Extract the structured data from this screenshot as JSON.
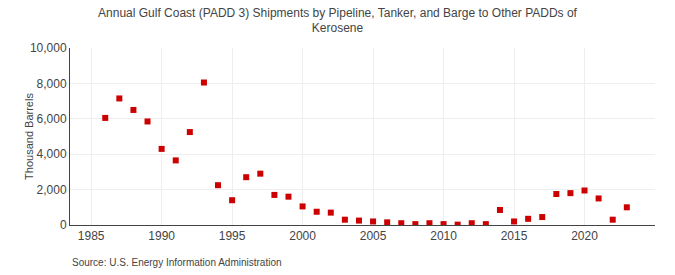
{
  "chart_data": {
    "type": "scatter",
    "title": "Annual Gulf Coast (PADD 3) Shipments by Pipeline, Tanker, and Barge to Other PADDs of\nKerosene",
    "ylabel": "Thousand Barrels",
    "annotations": [
      "Source: U.S. Energy Information Administration"
    ],
    "x": [
      1986,
      1987,
      1988,
      1989,
      1990,
      1991,
      1992,
      1993,
      1994,
      1995,
      1996,
      1997,
      1998,
      1999,
      2000,
      2001,
      2002,
      2003,
      2004,
      2005,
      2006,
      2007,
      2008,
      2009,
      2010,
      2011,
      2012,
      2013,
      2014,
      2015,
      2016,
      2017,
      2018,
      2019,
      2020,
      2021,
      2022,
      2023
    ],
    "values": [
      6050,
      7150,
      6500,
      5850,
      4300,
      3650,
      5250,
      8050,
      2250,
      1400,
      2700,
      2900,
      1700,
      1600,
      1050,
      750,
      700,
      300,
      250,
      200,
      150,
      100,
      50,
      100,
      50,
      20,
      100,
      50,
      850,
      200,
      350,
      450,
      1750,
      1800,
      1950,
      1500,
      300,
      1000
    ],
    "color": "#cc0000",
    "marker": "square",
    "xlim": [
      1983.5,
      2025
    ],
    "ylim": [
      0,
      10000
    ],
    "xticks": [
      1985,
      1990,
      1995,
      2000,
      2005,
      2010,
      2015,
      2020
    ],
    "yticks": [
      0,
      {
        "value": 2000,
        "label": "2,000"
      },
      {
        "value": 4000,
        "label": "4,000"
      },
      {
        "value": 6000,
        "label": "6,000"
      },
      {
        "value": 8000,
        "label": "8,000"
      },
      {
        "value": 10000,
        "label": "10,000"
      }
    ],
    "grid": true
  }
}
